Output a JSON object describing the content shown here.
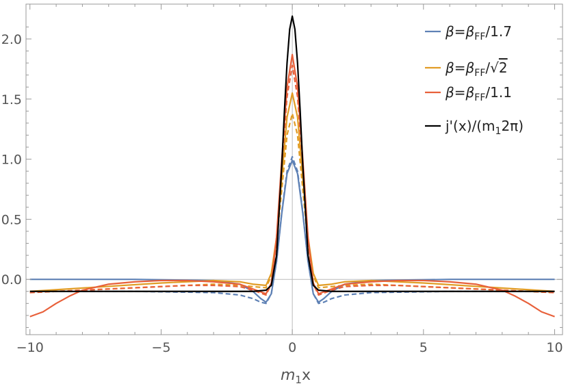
{
  "chart_data": {
    "type": "line",
    "title": "",
    "xlabel": {
      "main": "m",
      "sub": "1",
      "tail": "x"
    },
    "ylabel": "",
    "xlim": [
      -10.15,
      10.3
    ],
    "ylim": [
      -0.46,
      2.29
    ],
    "xticks": [
      -10,
      -5,
      0,
      5,
      10
    ],
    "xtick_labels": [
      "−10",
      "−5",
      "0",
      "5",
      "10"
    ],
    "yticks": [
      0.0,
      0.5,
      1.0,
      1.5,
      2.0
    ],
    "ytick_labels": [
      "0.0",
      "0.5",
      "1.0",
      "1.5",
      "2.0"
    ],
    "grid": false,
    "legend_position": "top-right",
    "legend": [
      {
        "a": "β=β",
        "sub": "FF",
        "b": "/1.7",
        "color": "#5e81b5"
      },
      {
        "a": "β=β",
        "sub": "FF",
        "b": "/",
        "sqrt": "2",
        "color": "#e19c24"
      },
      {
        "a": "β=β",
        "sub": "FF",
        "b": "/1.1",
        "color": "#e8603a"
      },
      {
        "a": "j'(x)/(m",
        "sub": "1",
        "b": "2π)",
        "color": "#000000"
      }
    ],
    "series": [
      {
        "color": "#5e81b5",
        "style": "solid",
        "x": [
          -10,
          -6,
          -3,
          -2,
          -1.5,
          -1.2,
          -1,
          -0.8,
          -0.6,
          -0.4,
          -0.2,
          0,
          0.2,
          0.4,
          0.6,
          0.8,
          1,
          1.2,
          1.5,
          2,
          3,
          6,
          10
        ],
        "y": [
          0,
          0,
          -0.01,
          -0.04,
          -0.1,
          -0.16,
          -0.19,
          -0.12,
          0.15,
          0.55,
          0.88,
          0.99,
          0.88,
          0.55,
          0.15,
          -0.12,
          -0.19,
          -0.16,
          -0.1,
          -0.04,
          -0.01,
          0,
          0
        ]
      },
      {
        "color": "#5e81b5",
        "style": "dashed",
        "x": [
          -10,
          -6,
          -3,
          -2,
          -1.5,
          -1.2,
          -1,
          -0.8,
          -0.6,
          -0.4,
          -0.2,
          0,
          0.2,
          0.4,
          0.6,
          0.8,
          1,
          1.2,
          1.5,
          2,
          3,
          6,
          10
        ],
        "y": [
          -0.1,
          -0.1,
          -0.11,
          -0.13,
          -0.16,
          -0.19,
          -0.2,
          -0.12,
          0.15,
          0.56,
          0.9,
          1.02,
          0.9,
          0.56,
          0.15,
          -0.12,
          -0.2,
          -0.19,
          -0.16,
          -0.13,
          -0.11,
          -0.1,
          -0.1
        ]
      },
      {
        "color": "#e19c24",
        "style": "solid",
        "x": [
          -10,
          -5,
          -3,
          -2,
          -1.5,
          -1,
          -0.8,
          -0.6,
          -0.4,
          -0.2,
          0,
          0.2,
          0.4,
          0.6,
          0.8,
          1,
          1.5,
          2,
          3,
          5,
          10
        ],
        "y": [
          -0.1,
          -0.03,
          -0.01,
          -0.02,
          -0.04,
          -0.05,
          0.05,
          0.35,
          0.85,
          1.35,
          1.55,
          1.35,
          0.85,
          0.35,
          0.05,
          -0.05,
          -0.04,
          -0.02,
          -0.01,
          -0.03,
          -0.1
        ]
      },
      {
        "color": "#e19c24",
        "style": "dashed",
        "x": [
          -10,
          -5,
          -3,
          -2,
          -1.5,
          -1,
          -0.8,
          -0.6,
          -0.4,
          -0.2,
          0,
          0.2,
          0.4,
          0.6,
          0.8,
          1,
          1.5,
          2,
          3,
          5,
          10
        ],
        "y": [
          -0.11,
          -0.06,
          -0.04,
          -0.05,
          -0.06,
          -0.07,
          0.03,
          0.3,
          0.75,
          1.2,
          1.38,
          1.2,
          0.75,
          0.3,
          0.03,
          -0.07,
          -0.06,
          -0.05,
          -0.04,
          -0.06,
          -0.11
        ]
      },
      {
        "color": "#e8603a",
        "style": "solid",
        "x": [
          -10,
          -9.5,
          -9,
          -8.5,
          -8,
          -7,
          -6,
          -5,
          -4,
          -3,
          -2,
          -1.5,
          -1,
          -0.8,
          -0.6,
          -0.4,
          -0.2,
          0,
          0.2,
          0.4,
          0.6,
          0.8,
          1,
          1.5,
          2,
          3,
          4,
          5,
          6,
          7,
          8,
          8.5,
          9,
          9.5,
          10
        ],
        "y": [
          -0.31,
          -0.27,
          -0.2,
          -0.14,
          -0.09,
          -0.04,
          -0.02,
          -0.01,
          -0.01,
          -0.02,
          -0.04,
          -0.08,
          -0.12,
          -0.03,
          0.35,
          1.0,
          1.6,
          1.87,
          1.6,
          1.0,
          0.35,
          -0.03,
          -0.12,
          -0.08,
          -0.04,
          -0.02,
          -0.01,
          -0.01,
          -0.02,
          -0.04,
          -0.09,
          -0.14,
          -0.2,
          -0.27,
          -0.31
        ]
      },
      {
        "color": "#e8603a",
        "style": "dashed",
        "x": [
          -10,
          -8,
          -6,
          -4,
          -3,
          -2,
          -1.5,
          -1,
          -0.8,
          -0.6,
          -0.4,
          -0.2,
          0,
          0.2,
          0.4,
          0.6,
          0.8,
          1,
          1.5,
          2,
          3,
          4,
          6,
          8,
          10
        ],
        "y": [
          -0.11,
          -0.09,
          -0.07,
          -0.05,
          -0.05,
          -0.06,
          -0.09,
          -0.13,
          -0.04,
          0.32,
          0.95,
          1.52,
          1.78,
          1.52,
          0.95,
          0.32,
          -0.04,
          -0.13,
          -0.09,
          -0.06,
          -0.05,
          -0.05,
          -0.07,
          -0.09,
          -0.11
        ]
      },
      {
        "color": "#000000",
        "style": "solid",
        "x": [
          -10,
          -2,
          -1.5,
          -1,
          -0.8,
          -0.6,
          -0.4,
          -0.3,
          -0.2,
          -0.1,
          0,
          0.1,
          0.2,
          0.3,
          0.4,
          0.6,
          0.8,
          1,
          1.5,
          2,
          10
        ],
        "y": [
          -0.1,
          -0.1,
          -0.1,
          -0.09,
          -0.05,
          0.2,
          0.95,
          1.4,
          1.8,
          2.08,
          2.19,
          2.08,
          1.8,
          1.4,
          0.95,
          0.2,
          -0.05,
          -0.09,
          -0.1,
          -0.1,
          -0.1
        ]
      }
    ]
  }
}
